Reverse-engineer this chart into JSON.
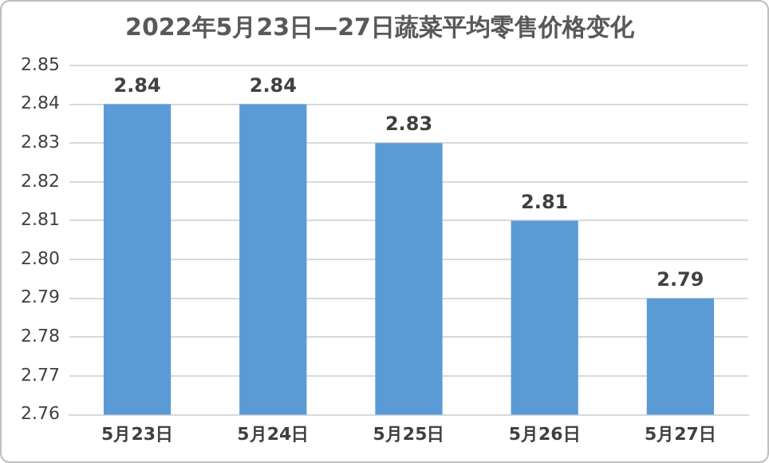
{
  "chart_data": {
    "type": "bar",
    "title": "2022年5月23日—27日蔬菜平均零售价格变化",
    "categories": [
      "5月23日",
      "5月24日",
      "5月25日",
      "5月26日",
      "5月27日"
    ],
    "values": [
      2.84,
      2.84,
      2.83,
      2.81,
      2.79
    ],
    "color": "#5b9bd5",
    "ylim": [
      2.76,
      2.85
    ],
    "yticks": [
      2.76,
      2.77,
      2.78,
      2.79,
      {
        "value": 2.8,
        "label": "2.80"
      },
      2.81,
      2.82,
      2.83,
      2.84,
      2.85
    ],
    "grid": "y",
    "legend": false,
    "data_labels": true
  }
}
